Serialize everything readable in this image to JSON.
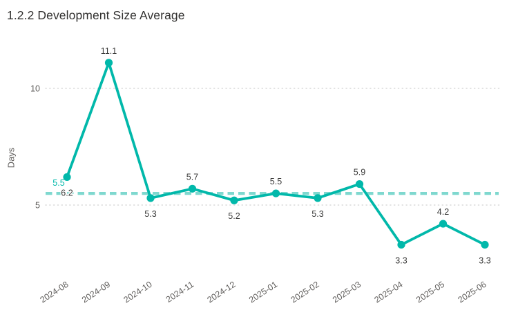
{
  "header": {
    "title": "1.2.2 Development Size Average"
  },
  "chart_data": {
    "type": "line",
    "title": "1.2.2 Development Size Average",
    "xlabel": "",
    "ylabel": "Days",
    "categories": [
      "2024-08",
      "2024-09",
      "2024-10",
      "2024-11",
      "2024-12",
      "2025-01",
      "2025-02",
      "2025-03",
      "2025-04",
      "2025-05",
      "2025-06"
    ],
    "series": [
      {
        "name": "Development Size Average",
        "values": [
          6.2,
          11.1,
          5.3,
          5.7,
          5.2,
          5.5,
          5.3,
          5.9,
          3.3,
          4.2,
          3.3
        ]
      }
    ],
    "data_labels": [
      "6.2",
      "11.1",
      "5.3",
      "5.7",
      "5.2",
      "5.5",
      "5.3",
      "5.9",
      "3.3",
      "4.2",
      "3.3"
    ],
    "label_positions": [
      "below",
      "above",
      "below",
      "above",
      "below",
      "above",
      "below",
      "above",
      "below",
      "above",
      "below"
    ],
    "y_ticks": [
      {
        "value": 5,
        "label": "5"
      },
      {
        "value": 10,
        "label": "10"
      }
    ],
    "ylim": [
      2.3,
      12.1
    ],
    "grid": "dotted-horizontal",
    "legend": "none",
    "average_line": {
      "value": 5.5,
      "label": "5.5",
      "style": "dashed"
    },
    "colors": {
      "line": "#01b8aa",
      "point": "#01b8aa",
      "average": "#7fd8cf",
      "average_label": "#01b8aa",
      "data_label": "#3a3a39",
      "axis_label": "#605e5c",
      "grid": "#d9d9d9",
      "title": "#323130",
      "background": "#ffffff"
    }
  }
}
